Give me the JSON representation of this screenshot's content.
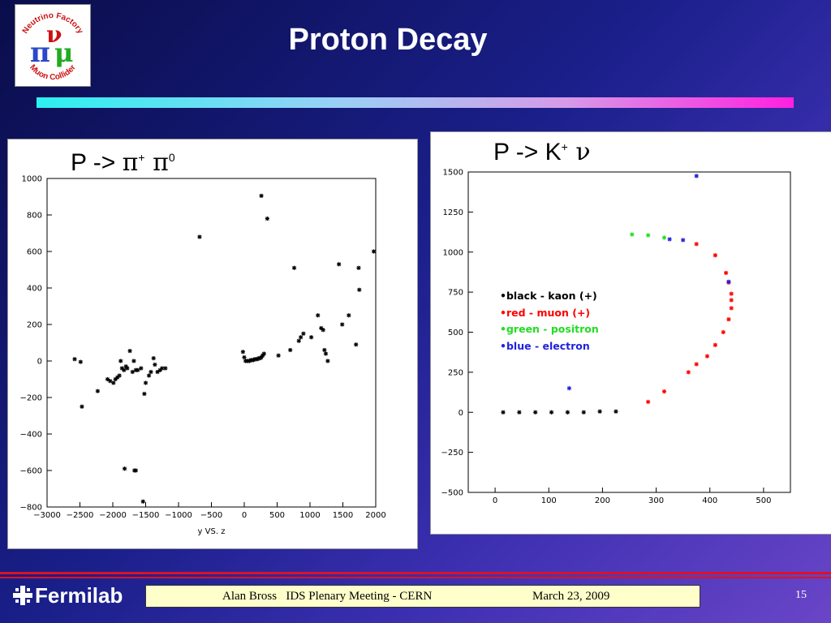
{
  "slide": {
    "title": "Proton Decay",
    "footer_left": "Alan Bross   IDS Plenary Meeting - CERN",
    "footer_right": "March 23,  2009",
    "page_number": "15",
    "fermilab_label": "Fermilab",
    "logo_text_top": "Neutrino Factory",
    "logo_text_bottom": "Muon Collider"
  },
  "colors": {
    "kaon": "#000000",
    "muon": "#ff0000",
    "positron": "#22dd22",
    "electron": "#2222dd",
    "footer_bg": "#ffffcc",
    "accent_line": "#e01020"
  },
  "chart_data": [
    {
      "type": "scatter",
      "title_prefix": "P -> ",
      "title_greek1": "π",
      "title_sup1": "+",
      "title_greek2": " π",
      "title_sup2": "0",
      "xlabel": "y VS. z",
      "xlim": [
        -3000,
        2000
      ],
      "ylim": [
        -800,
        1000
      ],
      "xticks": [
        -3000,
        -2500,
        -2000,
        -1500,
        -1000,
        -500,
        0,
        500,
        1000,
        1500,
        2000
      ],
      "yticks": [
        -800,
        -600,
        -400,
        -200,
        0,
        200,
        400,
        600,
        800,
        1000
      ],
      "points": [
        [
          -2580,
          10
        ],
        [
          -2490,
          -5
        ],
        [
          -2470,
          -250
        ],
        [
          -2230,
          -165
        ],
        [
          -2080,
          -100
        ],
        [
          -2040,
          -110
        ],
        [
          -1990,
          -120
        ],
        [
          -1960,
          -100
        ],
        [
          -1930,
          -90
        ],
        [
          -1900,
          -80
        ],
        [
          -1880,
          0
        ],
        [
          -1860,
          -40
        ],
        [
          -1830,
          -50
        ],
        [
          -1800,
          -30
        ],
        [
          -1780,
          -40
        ],
        [
          -1740,
          55
        ],
        [
          -1700,
          -60
        ],
        [
          -1680,
          0
        ],
        [
          -1650,
          -50
        ],
        [
          -1620,
          -50
        ],
        [
          -1570,
          -40
        ],
        [
          -1520,
          -180
        ],
        [
          -1500,
          -120
        ],
        [
          -1450,
          -80
        ],
        [
          -1420,
          -60
        ],
        [
          -1380,
          15
        ],
        [
          -1360,
          -20
        ],
        [
          -1320,
          -60
        ],
        [
          -1280,
          -50
        ],
        [
          -1250,
          -40
        ],
        [
          -1200,
          -40
        ],
        [
          -1820,
          -590
        ],
        [
          -1670,
          -600
        ],
        [
          -1650,
          -600
        ],
        [
          -1540,
          -770
        ],
        [
          -20,
          50
        ],
        [
          0,
          20
        ],
        [
          20,
          0
        ],
        [
          40,
          0
        ],
        [
          60,
          0
        ],
        [
          80,
          0
        ],
        [
          100,
          5
        ],
        [
          120,
          5
        ],
        [
          140,
          5
        ],
        [
          160,
          10
        ],
        [
          180,
          10
        ],
        [
          200,
          10
        ],
        [
          220,
          15
        ],
        [
          240,
          15
        ],
        [
          260,
          20
        ],
        [
          280,
          30
        ],
        [
          300,
          40
        ],
        [
          260,
          905
        ],
        [
          350,
          780
        ],
        [
          -680,
          680
        ],
        [
          520,
          30
        ],
        [
          700,
          60
        ],
        [
          760,
          510
        ],
        [
          830,
          110
        ],
        [
          860,
          130
        ],
        [
          900,
          150
        ],
        [
          1020,
          130
        ],
        [
          1120,
          250
        ],
        [
          1170,
          180
        ],
        [
          1200,
          170
        ],
        [
          1220,
          60
        ],
        [
          1240,
          40
        ],
        [
          1270,
          0
        ],
        [
          1440,
          530
        ],
        [
          1490,
          200
        ],
        [
          1590,
          250
        ],
        [
          1700,
          90
        ],
        [
          1740,
          510
        ],
        [
          1750,
          390
        ],
        [
          1970,
          600
        ]
      ]
    },
    {
      "type": "scatter",
      "title_prefix": "P -> K",
      "title_sup1": "+",
      "title_greek2": " ν",
      "xlim": [
        -50,
        550
      ],
      "ylim": [
        -500,
        1500
      ],
      "xticks": [
        0,
        100,
        200,
        300,
        400,
        500
      ],
      "yticks": [
        -500,
        -250,
        0,
        250,
        500,
        750,
        1000,
        1250,
        1500
      ],
      "legend": [
        {
          "label": "•black - kaon (+)",
          "color": "#000000"
        },
        {
          "label": "•red - muon (+)",
          "color": "#ff0000"
        },
        {
          "label": "•green - positron",
          "color": "#22dd22"
        },
        {
          "label": "•blue - electron",
          "color": "#2222dd"
        }
      ],
      "series": [
        {
          "color": "#000000",
          "points": [
            [
              15,
              0
            ],
            [
              45,
              0
            ],
            [
              75,
              0
            ],
            [
              105,
              0
            ],
            [
              135,
              0
            ],
            [
              165,
              0
            ],
            [
              195,
              5
            ],
            [
              225,
              5
            ]
          ]
        },
        {
          "color": "#ff0000",
          "points": [
            [
              285,
              65
            ],
            [
              315,
              130
            ],
            [
              360,
              250
            ],
            [
              375,
              300
            ],
            [
              395,
              350
            ],
            [
              410,
              420
            ],
            [
              425,
              500
            ],
            [
              435,
              580
            ],
            [
              440,
              650
            ],
            [
              440,
              700
            ],
            [
              440,
              740
            ],
            [
              435,
              810
            ],
            [
              430,
              870
            ],
            [
              410,
              980
            ],
            [
              375,
              1050
            ]
          ]
        },
        {
          "color": "#22dd22",
          "points": [
            [
              255,
              1110
            ],
            [
              285,
              1105
            ],
            [
              315,
              1090
            ]
          ]
        },
        {
          "color": "#2222dd",
          "points": [
            [
              375,
              1475
            ],
            [
              325,
              1080
            ],
            [
              350,
              1075
            ],
            [
              138,
              150
            ],
            [
              435,
              815
            ]
          ]
        }
      ]
    }
  ]
}
